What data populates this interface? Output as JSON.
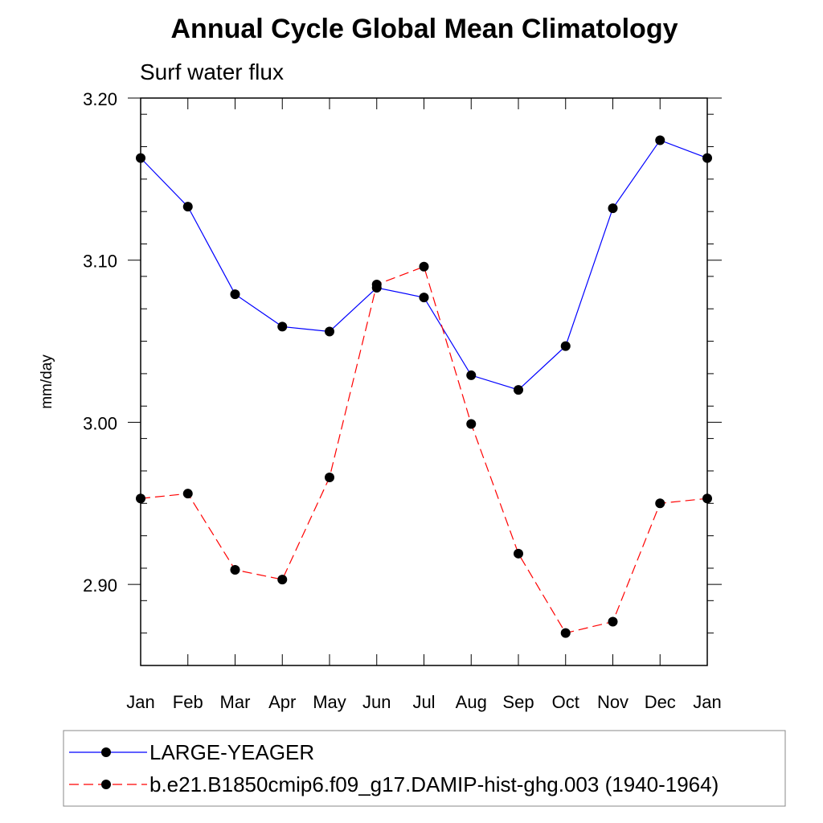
{
  "chart_data": {
    "type": "line",
    "title": "Annual Cycle Global Mean Climatology",
    "subtitle": "Surf water flux",
    "xlabel": "",
    "ylabel": "mm/day",
    "categories": [
      "Jan",
      "Feb",
      "Mar",
      "Apr",
      "May",
      "Jun",
      "Jul",
      "Aug",
      "Sep",
      "Oct",
      "Nov",
      "Dec",
      "Jan"
    ],
    "ylim": [
      2.85,
      3.2
    ],
    "yticks": [
      "2.90",
      "3.00",
      "3.10",
      "3.20"
    ],
    "series": [
      {
        "name": "LARGE-YEAGER",
        "color": "#0000ff",
        "line_style": "solid",
        "values": [
          3.163,
          3.133,
          3.079,
          3.059,
          3.056,
          3.083,
          3.077,
          3.029,
          3.02,
          3.047,
          3.132,
          3.174,
          3.163
        ]
      },
      {
        "name": "b.e21.B1850cmip6.f09_g17.DAMIP-hist-ghg.003 (1940-1964)",
        "color": "#ff0000",
        "line_style": "dashed",
        "values": [
          2.953,
          2.956,
          2.909,
          2.903,
          2.966,
          3.085,
          3.096,
          2.999,
          2.919,
          2.87,
          2.877,
          2.95,
          2.953
        ]
      }
    ],
    "grid": false,
    "legend_position": "bottom"
  }
}
